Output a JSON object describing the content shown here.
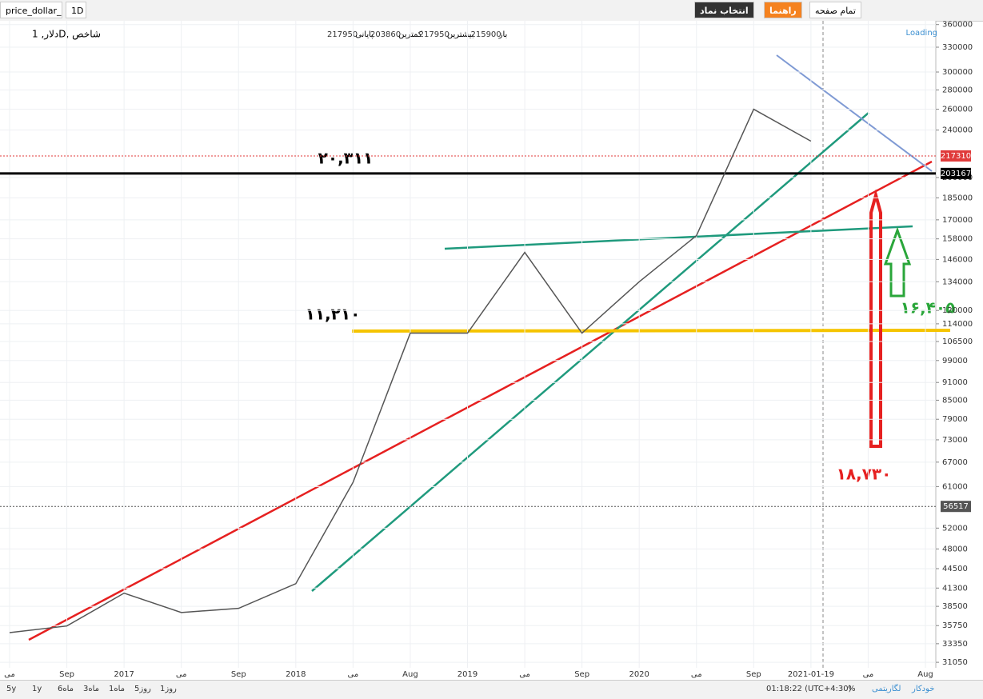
{
  "toolbar": {
    "symbol": "price_dollar_rl",
    "interval": "1D",
    "select_symbol": "انتخاب نماد",
    "help": "راهنما",
    "fullscreen": "تمام صفحه"
  },
  "legend": {
    "name": "شاخص ,Dدلار, 1",
    "ohlc": [
      {
        "label": "باز",
        "value": 215900
      },
      {
        "label": "بیشترین",
        "value": 217950
      },
      {
        "label": "کمترین",
        "value": 203860
      },
      {
        "label": "پایانی",
        "value": 217950
      }
    ],
    "status": "Loading"
  },
  "annotations": [
    "۲۰,۳۱۱",
    "۱۱,۲۱۰",
    "۱۶,۴۰۵",
    "۱۸,۷۳۰"
  ],
  "chart_data": {
    "type": "line",
    "log": true,
    "categories": [
      "می",
      "Sep",
      "2017",
      "می",
      "Sep",
      "2018",
      "می",
      "Aug",
      "2019",
      "می",
      "Sep",
      "2020",
      "می",
      "Sep",
      "2021-01-19",
      "می",
      "Aug"
    ],
    "series": [
      {
        "color": "#555555",
        "values": [
          34800,
          35700,
          40500,
          37600,
          38200,
          42000,
          62000,
          110000,
          110000,
          150000,
          110000,
          134000,
          160000,
          260000,
          230000,
          null,
          null
        ]
      }
    ],
    "ylim": [
      30400,
      363000
    ],
    "yticks": [
      360000,
      330000,
      300000,
      280000,
      260000,
      240000,
      200000,
      185000,
      170000,
      158000,
      146000,
      134000,
      120000,
      114000,
      106500,
      99000,
      91000,
      85000,
      79000,
      73000,
      67000,
      61000,
      52000,
      48000,
      44500,
      41300,
      38500,
      35750,
      33350,
      31050
    ],
    "price_lines": [
      {
        "value": 217310,
        "color": "#e03a3a"
      },
      {
        "value": 203167,
        "color": "#000000"
      },
      {
        "value": 56517,
        "color": "#555555"
      }
    ]
  },
  "bottom_bar": {
    "ranges": [
      "5y",
      "1y",
      "6ماه",
      "3ماه",
      "1ماه",
      "5روز",
      "1روز"
    ],
    "clock": "01:18:22 (UTC+4:30)",
    "percent": "%",
    "log": "لگاریتمی",
    "auto": "خودکار"
  }
}
